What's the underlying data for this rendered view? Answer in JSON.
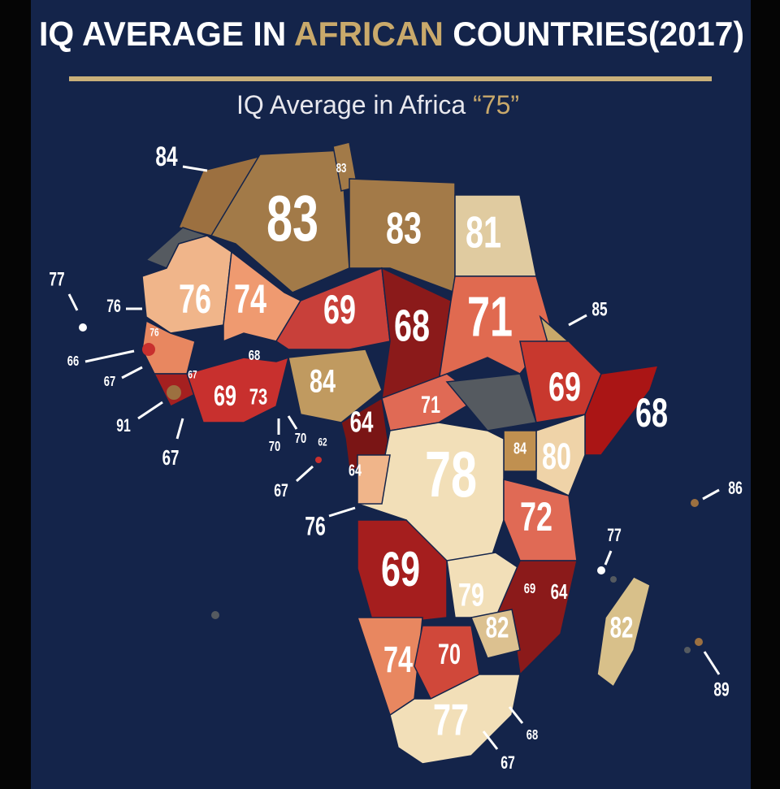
{
  "title": {
    "before": "IQ AVERAGE IN ",
    "highlight": "AFRICAN",
    "after": " COUNTRIES(2017)"
  },
  "subtitle": {
    "text": "IQ Average in Africa ",
    "highlight": "“75”"
  },
  "labels": [
    84,
    83,
    83,
    83,
    81,
    77,
    76,
    76,
    74,
    69,
    68,
    71,
    85,
    76,
    66,
    68,
    67,
    67,
    84,
    69,
    73,
    69,
    91,
    71,
    64,
    68,
    67,
    70,
    70,
    62,
    84,
    80,
    64,
    78,
    67,
    86,
    72,
    76,
    77,
    69,
    79,
    69,
    64,
    82,
    82,
    74,
    70,
    89,
    77,
    68,
    67
  ]
}
